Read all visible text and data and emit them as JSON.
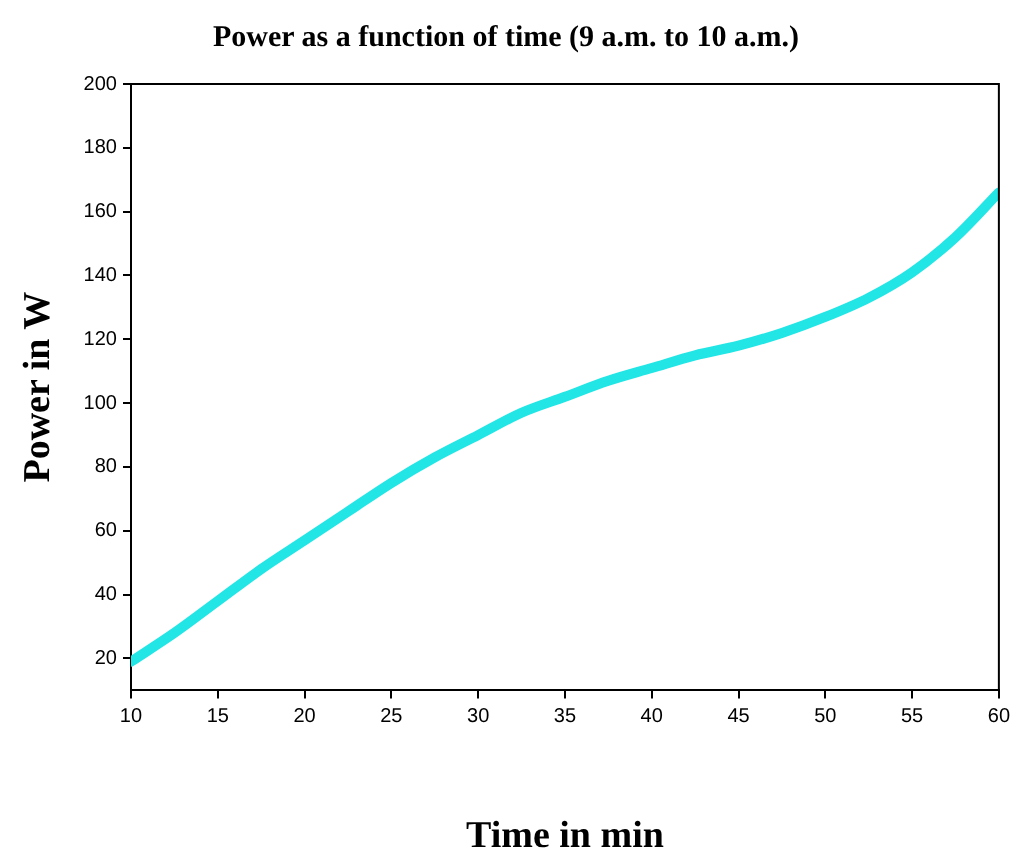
{
  "chart_data": {
    "type": "line",
    "title": "Power as a function of time (9 a.m. to 10 a.m.)",
    "xlabel": "Time in min",
    "ylabel": "Power in W",
    "x": [
      10,
      12.5,
      15,
      17.5,
      20,
      22.5,
      25,
      27.5,
      30,
      32.5,
      35,
      37.5,
      40,
      42.5,
      45,
      47.5,
      50,
      52.5,
      55,
      57.5,
      60
    ],
    "series": [
      {
        "color": "#22e5e5",
        "values": [
          19,
          28,
          38,
          48,
          57,
          66,
          75,
          83,
          90,
          97,
          102,
          107,
          111,
          115,
          118,
          122,
          127,
          133,
          141,
          152,
          166
        ]
      }
    ],
    "xlim": [
      10,
      60
    ],
    "xticks": [
      10,
      15,
      20,
      25,
      30,
      35,
      40,
      45,
      50,
      55,
      60
    ],
    "ylim": [
      10,
      200
    ],
    "yticks": [
      20,
      40,
      60,
      80,
      100,
      120,
      140,
      160,
      180,
      200
    ],
    "grid": false,
    "legend": false,
    "marker": "none",
    "line_style": "solid"
  }
}
